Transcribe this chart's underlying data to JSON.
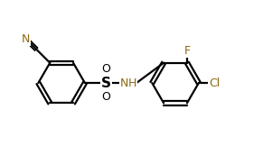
{
  "background_color": "#ffffff",
  "bond_color": "#000000",
  "atom_colors": {
    "N": "#8B6914",
    "O": "#000000",
    "S": "#000000",
    "F": "#8B6914",
    "Cl": "#8B6914",
    "C": "#000000",
    "H": "#8B6914"
  },
  "line_width": 1.6,
  "font_size": 9,
  "xlim": [
    0,
    9.5
  ],
  "ylim": [
    0,
    5.5
  ]
}
